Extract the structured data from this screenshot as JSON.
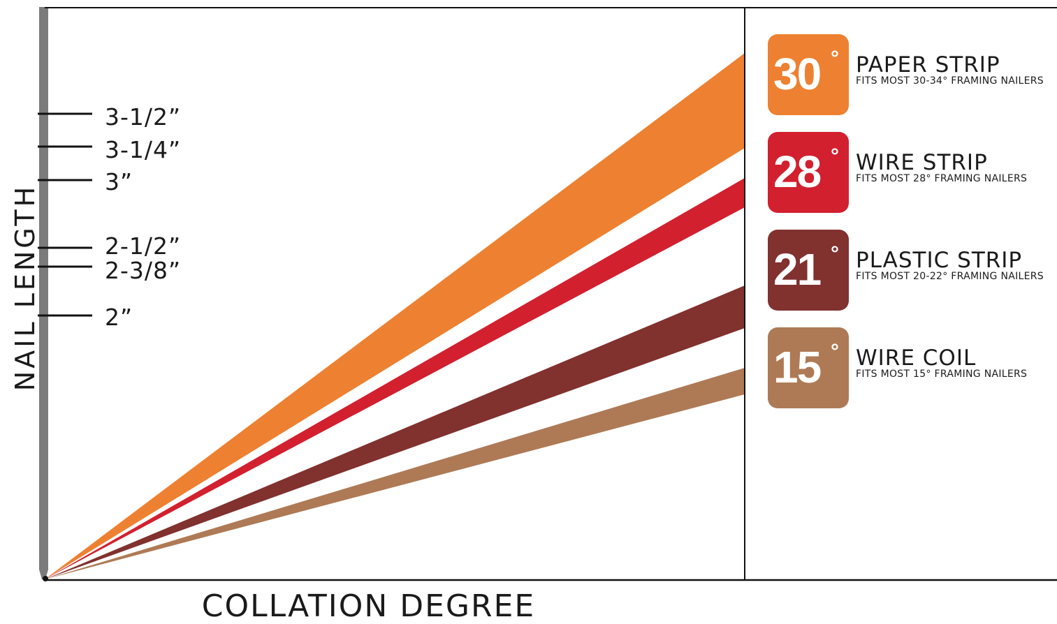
{
  "axes": {
    "y_title": "NAIL LENGTH",
    "x_title": "COLLATION DEGREE"
  },
  "nail_lengths": [
    {
      "label": "3-1/2”"
    },
    {
      "label": "3-1/4”"
    },
    {
      "label": "3”"
    },
    {
      "label": "2-1/2”"
    },
    {
      "label": "2-3/8”"
    },
    {
      "label": "2”"
    }
  ],
  "legend": [
    {
      "degree": "30",
      "deg_symbol": "°",
      "title": "PAPER STRIP",
      "description": "FITS MOST 30-34° FRAMING NAILERS",
      "color": "#ED8131"
    },
    {
      "degree": "28",
      "deg_symbol": "°",
      "title": "WIRE STRIP",
      "description": "FITS MOST 28° FRAMING NAILERS",
      "color": "#D2202F"
    },
    {
      "degree": "21",
      "deg_symbol": "°",
      "title": "PLASTIC STRIP",
      "description": "FITS MOST 20-22° FRAMING NAILERS",
      "color": "#81312E"
    },
    {
      "degree": "15",
      "deg_symbol": "°",
      "title": "WIRE COIL",
      "description": "FITS MOST 15° FRAMING NAILERS",
      "color": "#AE7A55"
    }
  ],
  "colors": {
    "nail_shaft": "#7B7B7B",
    "axis_line": "#111111"
  }
}
